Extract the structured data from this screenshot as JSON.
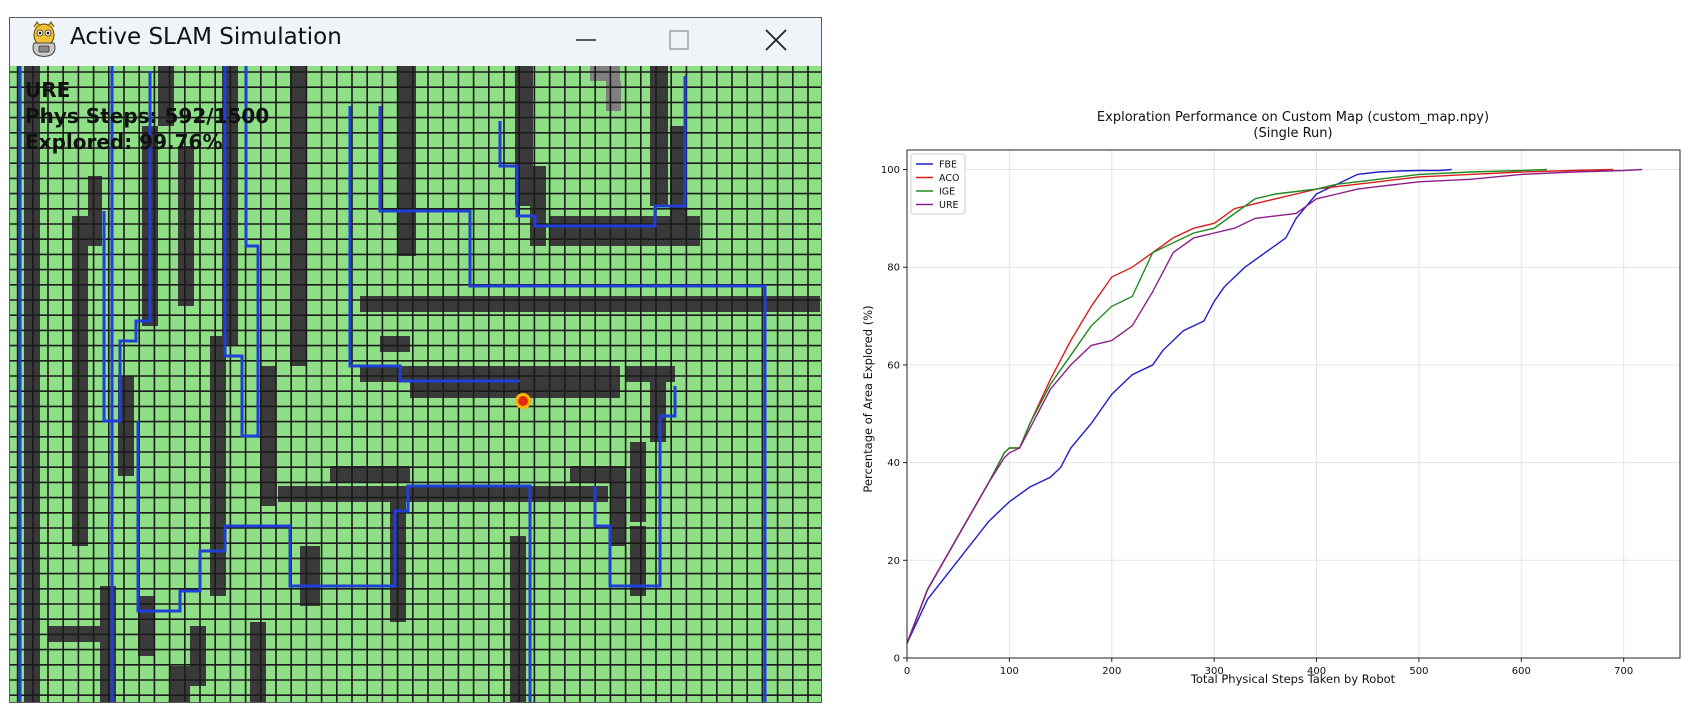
{
  "window": {
    "title": "Active SLAM Simulation",
    "icon": "python-snake-icon",
    "controls": [
      "minimize-icon",
      "maximize-icon",
      "close-icon"
    ]
  },
  "hud": {
    "algorithm": "URE",
    "phys_steps": "Phys Steps: 592/1500",
    "explored": "Explored: 99.76%"
  },
  "colors": {
    "free_cell": "#8edf85",
    "wall_cell": "#3a3a3a",
    "unknown_cell": "#808080",
    "grid_line": "#1b1b1b",
    "path": "#1f3fd6",
    "robot": "#e02a10",
    "robot_halo": "#ffb300"
  },
  "chart_data": {
    "type": "line",
    "title": "Exploration Performance on Custom Map (custom_map.npy)",
    "subtitle": "(Single Run)",
    "xlabel": "Total Physical Steps Taken by Robot",
    "ylabel": "Percentage of Area Explored (%)",
    "xlim": [
      0,
      755
    ],
    "ylim": [
      0,
      104
    ],
    "xticks": [
      "0",
      "100",
      "200",
      "300",
      "400",
      "500",
      "600",
      "700"
    ],
    "yticks": [
      "0",
      "20",
      "40",
      "60",
      "80",
      "100"
    ],
    "grid": true,
    "legend_position": "top-left",
    "series": [
      {
        "name": "FBE",
        "color": "#1f1fcc",
        "x": [
          0,
          20,
          50,
          80,
          100,
          120,
          140,
          150,
          160,
          180,
          200,
          220,
          240,
          250,
          270,
          290,
          300,
          310,
          330,
          350,
          370,
          380,
          400,
          420,
          440,
          460,
          480,
          500,
          520,
          532
        ],
        "y": [
          3,
          12,
          20,
          28,
          32,
          35,
          37,
          39,
          43,
          48,
          54,
          58,
          60,
          63,
          67,
          69,
          73,
          76,
          80,
          83,
          86,
          90,
          95,
          97,
          99,
          99.5,
          99.7,
          99.8,
          99.8,
          100
        ]
      },
      {
        "name": "ACO",
        "color": "#d81e1e",
        "x": [
          0,
          20,
          50,
          80,
          95,
          100,
          110,
          120,
          140,
          160,
          180,
          200,
          220,
          240,
          260,
          280,
          300,
          320,
          340,
          360,
          380,
          400,
          420,
          440,
          460,
          480,
          500,
          550,
          600,
          650,
          690
        ],
        "y": [
          3,
          14,
          25,
          36,
          42,
          43,
          43,
          48,
          57,
          65,
          72,
          78,
          80,
          83,
          86,
          88,
          89,
          92,
          93,
          94,
          95,
          96,
          96.5,
          97,
          97.5,
          98,
          98.5,
          99,
          99.5,
          99.8,
          100
        ]
      },
      {
        "name": "IGE",
        "color": "#1f8a1f",
        "x": [
          0,
          20,
          50,
          80,
          95,
          100,
          110,
          120,
          140,
          160,
          180,
          200,
          220,
          240,
          260,
          280,
          300,
          320,
          340,
          360,
          380,
          400,
          420,
          440,
          460,
          480,
          500,
          550,
          600,
          625
        ],
        "y": [
          3,
          14,
          25,
          36,
          42,
          43,
          43,
          48,
          56,
          62,
          68,
          72,
          74,
          83,
          85,
          87,
          88,
          91,
          94,
          95,
          95.5,
          96,
          97,
          97.5,
          98,
          98.5,
          99,
          99.5,
          99.8,
          100
        ]
      },
      {
        "name": "URE",
        "color": "#8a1f8a",
        "x": [
          0,
          20,
          50,
          80,
          95,
          100,
          110,
          120,
          140,
          160,
          180,
          200,
          220,
          240,
          260,
          280,
          300,
          320,
          340,
          360,
          380,
          400,
          420,
          440,
          460,
          480,
          500,
          550,
          600,
          650,
          700,
          718
        ],
        "y": [
          3,
          14,
          25,
          36,
          41,
          42,
          43,
          47,
          55,
          60,
          64,
          65,
          68,
          75,
          83,
          86,
          87,
          88,
          90,
          90.5,
          91,
          94,
          95,
          96,
          96.5,
          97,
          97.5,
          98,
          99,
          99.5,
          99.8,
          100
        ]
      }
    ]
  }
}
